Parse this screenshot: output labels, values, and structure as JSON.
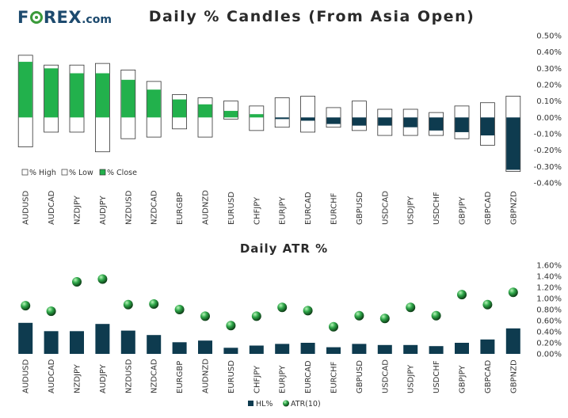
{
  "logo": {
    "pre": "F",
    "post": "REX",
    "suffix": ".com"
  },
  "chart_data": [
    {
      "type": "bar",
      "title": "Daily % Candles (From Asia Open)",
      "categories": [
        "AUDUSD",
        "AUDCAD",
        "NZDJPY",
        "AUDJPY",
        "NZDUSD",
        "NZDCAD",
        "EURGBP",
        "AUDNZD",
        "EURUSD",
        "CHFJPY",
        "EURJPY",
        "EURCAD",
        "EURCHF",
        "GBPUSD",
        "USDCAD",
        "USDJPY",
        "USDCHF",
        "GBPJPY",
        "GBPCAD",
        "GBPNZD"
      ],
      "series": [
        {
          "name": "% High",
          "values": [
            0.38,
            0.32,
            0.32,
            0.33,
            0.29,
            0.22,
            0.14,
            0.12,
            0.1,
            0.07,
            0.12,
            0.13,
            0.06,
            0.1,
            0.05,
            0.05,
            0.03,
            0.07,
            0.09,
            0.13
          ]
        },
        {
          "name": "% Low",
          "values": [
            -0.18,
            -0.09,
            -0.09,
            -0.21,
            -0.13,
            -0.12,
            -0.07,
            -0.12,
            -0.01,
            -0.08,
            -0.06,
            -0.09,
            -0.06,
            -0.08,
            -0.11,
            -0.11,
            -0.11,
            -0.13,
            -0.17,
            -0.33
          ]
        },
        {
          "name": "% Close",
          "values": [
            0.34,
            0.3,
            0.27,
            0.27,
            0.23,
            0.17,
            0.11,
            0.08,
            0.04,
            0.02,
            -0.01,
            -0.02,
            -0.04,
            -0.05,
            -0.05,
            -0.06,
            -0.08,
            -0.09,
            -0.11,
            -0.32
          ]
        }
      ],
      "ylim": [
        -0.4,
        0.5
      ],
      "yticks": [
        "0.50%",
        "0.40%",
        "0.30%",
        "0.20%",
        "0.10%",
        "0.00%",
        "-0.10%",
        "-0.20%",
        "-0.30%",
        "-0.40%"
      ],
      "legend_position": "bottom-left",
      "colors": {
        "up": "#22b14c",
        "down": "#0e3b4f",
        "range": "#ffffff",
        "border": "#333333"
      }
    },
    {
      "type": "bar",
      "title": "Daily ATR %",
      "categories": [
        "AUDUSD",
        "AUDCAD",
        "NZDJPY",
        "AUDJPY",
        "NZDUSD",
        "NZDCAD",
        "EURGBP",
        "AUDNZD",
        "EURUSD",
        "CHFJPY",
        "EURJPY",
        "EURCAD",
        "EURCHF",
        "GBPUSD",
        "USDCAD",
        "USDJPY",
        "USDCHF",
        "GBPJPY",
        "GBPCAD",
        "GBPNZD"
      ],
      "series": [
        {
          "name": "HL%",
          "values": [
            0.56,
            0.41,
            0.41,
            0.54,
            0.42,
            0.34,
            0.21,
            0.24,
            0.11,
            0.15,
            0.18,
            0.2,
            0.12,
            0.18,
            0.16,
            0.16,
            0.14,
            0.2,
            0.26,
            0.46
          ]
        },
        {
          "name": "ATR(10)",
          "values": [
            0.87,
            0.77,
            1.3,
            1.35,
            0.89,
            0.9,
            0.8,
            0.68,
            0.51,
            0.68,
            0.84,
            0.78,
            0.49,
            0.69,
            0.64,
            0.84,
            0.69,
            1.07,
            0.89,
            1.11
          ]
        }
      ],
      "ylim": [
        0,
        1.6
      ],
      "yticks": [
        "1.60%",
        "1.40%",
        "1.20%",
        "1.00%",
        "0.80%",
        "0.60%",
        "0.40%",
        "0.20%",
        "0.00%"
      ],
      "legend_position": "bottom-center",
      "colors": {
        "bar": "#0e3b4f",
        "marker": "#22b14c"
      }
    }
  ]
}
